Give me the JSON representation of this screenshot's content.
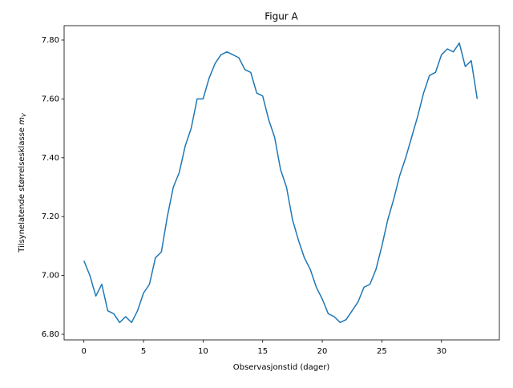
{
  "chart_data": {
    "type": "line",
    "title": "Figur A",
    "xlabel": "Observasjonstid (dager)",
    "ylabel": "Tilsynelatende størrelsesklasse",
    "ylabel_symbol": "m",
    "ylabel_subscript": "V",
    "x": [
      0,
      0.5,
      1,
      1.5,
      2,
      2.5,
      3,
      3.5,
      4,
      4.5,
      5,
      5.5,
      6,
      6.5,
      7,
      7.5,
      8,
      8.5,
      9,
      9.5,
      10,
      10.5,
      11,
      11.5,
      12,
      12.5,
      13,
      13.5,
      14,
      14.5,
      15,
      15.5,
      16,
      16.5,
      17,
      17.5,
      18,
      18.5,
      19,
      19.5,
      20,
      20.5,
      21,
      21.5,
      22,
      22.5,
      23,
      23.5,
      24,
      24.5,
      25,
      25.5,
      26,
      26.5,
      27,
      27.5,
      28,
      28.5,
      29,
      29.5,
      30,
      30.5,
      31,
      31.5,
      32,
      32.5,
      33
    ],
    "series": [
      {
        "name": "m_V",
        "color": "#1f77b4",
        "values": [
          7.05,
          7.0,
          6.93,
          6.97,
          6.88,
          6.87,
          6.84,
          6.86,
          6.84,
          6.88,
          6.94,
          6.97,
          7.06,
          7.08,
          7.2,
          7.3,
          7.35,
          7.44,
          7.5,
          7.6,
          7.6,
          7.67,
          7.72,
          7.75,
          7.76,
          7.75,
          7.74,
          7.7,
          7.69,
          7.62,
          7.61,
          7.53,
          7.47,
          7.36,
          7.3,
          7.19,
          7.12,
          7.06,
          7.02,
          6.96,
          6.92,
          6.87,
          6.86,
          6.84,
          6.85,
          6.88,
          6.91,
          6.96,
          6.97,
          7.02,
          7.1,
          7.19,
          7.26,
          7.34,
          7.4,
          7.47,
          7.54,
          7.62,
          7.68,
          7.69,
          7.75,
          7.77,
          7.76,
          7.79,
          7.71,
          7.73,
          7.6
        ]
      }
    ],
    "xlim": [
      -1.66,
      34.86
    ],
    "xticks": [
      0,
      5,
      10,
      15,
      20,
      25,
      30
    ],
    "ylim": [
      6.781,
      7.849
    ],
    "yticks": [
      {
        "value": 6.8,
        "label": "6.80"
      },
      {
        "value": 7.0,
        "label": "7.00"
      },
      {
        "value": 7.2,
        "label": "7.20"
      },
      {
        "value": 7.4,
        "label": "7.40"
      },
      {
        "value": 7.6,
        "label": "7.60"
      },
      {
        "value": 7.8,
        "label": "7.80"
      }
    ],
    "grid": false
  }
}
